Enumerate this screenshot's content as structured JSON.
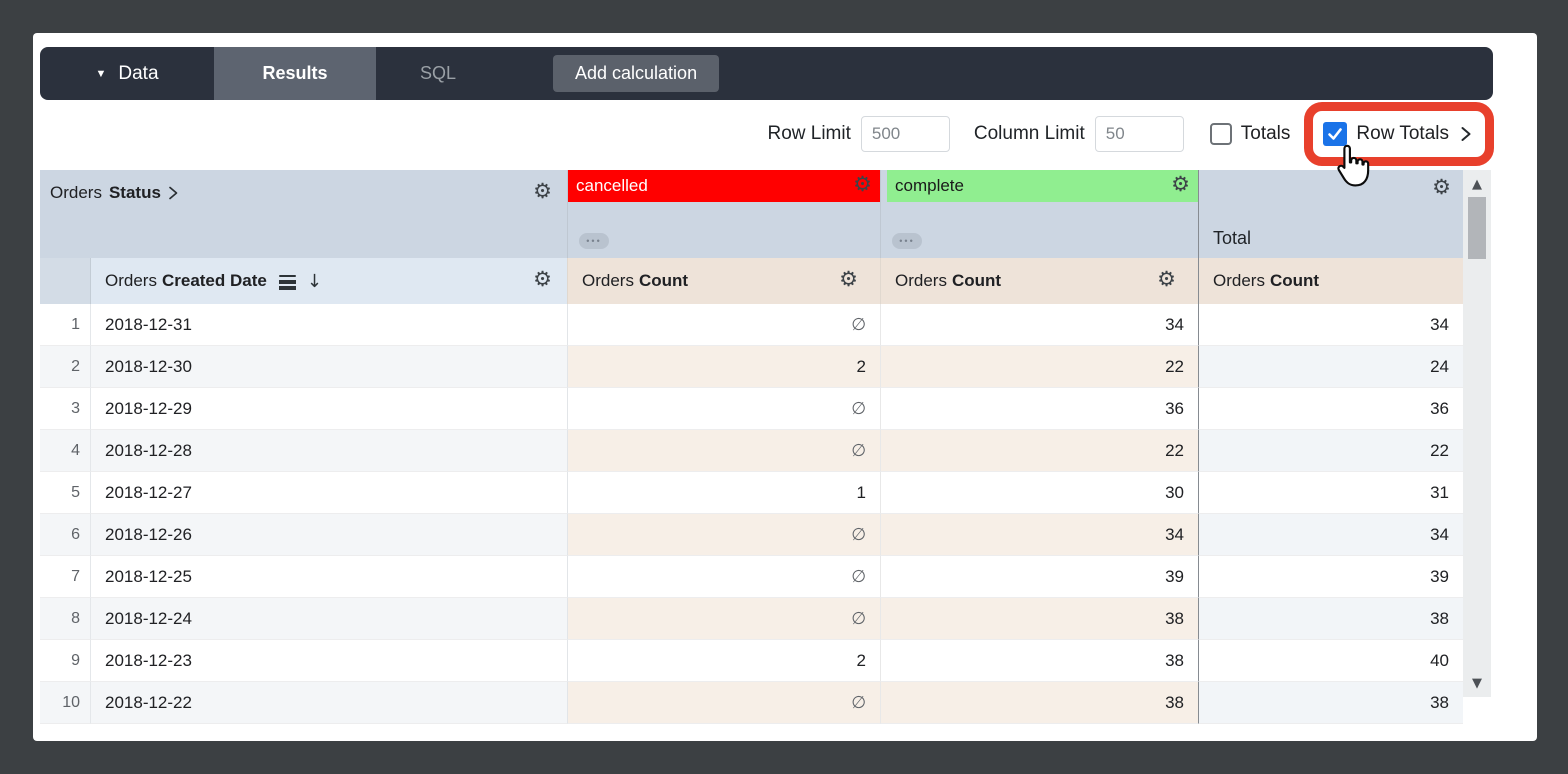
{
  "icons": {
    "caret_down": "▼",
    "gear": "⚙",
    "sort_desc": "↓",
    "null_symbol": "∅",
    "dots": "•••",
    "scroll_up": "▲",
    "scroll_down": "▼"
  },
  "colors": {
    "annotation_highlight": "#e8402c",
    "checkbox_accent": "#1a73e8"
  },
  "toolbar": {
    "data_label": "Data",
    "tabs": [
      {
        "label": "Results",
        "active": true
      },
      {
        "label": "SQL",
        "active": false
      }
    ],
    "add_calculation_label": "Add calculation"
  },
  "controls": {
    "row_limit_label": "Row Limit",
    "row_limit_value": "500",
    "column_limit_label": "Column Limit",
    "column_limit_value": "50",
    "totals_label": "Totals",
    "totals_checked": false,
    "row_totals_label": "Row Totals",
    "row_totals_checked": true
  },
  "table": {
    "dimension_header": {
      "view": "Orders",
      "field": "Status"
    },
    "date_header": {
      "view": "Orders",
      "field": "Created Date"
    },
    "measure_header": {
      "view": "Orders",
      "field": "Count"
    },
    "total_label": "Total",
    "pivots": [
      {
        "label": "cancelled",
        "bg": "#ff0000",
        "text": "#ffffff"
      },
      {
        "label": "complete",
        "bg": "#90ee90",
        "text": "#1a1a1a"
      }
    ],
    "rows": [
      {
        "n": 1,
        "date": "2018-12-31",
        "cancelled": null,
        "complete": 34,
        "total": 34
      },
      {
        "n": 2,
        "date": "2018-12-30",
        "cancelled": 2,
        "complete": 22,
        "total": 24
      },
      {
        "n": 3,
        "date": "2018-12-29",
        "cancelled": null,
        "complete": 36,
        "total": 36
      },
      {
        "n": 4,
        "date": "2018-12-28",
        "cancelled": null,
        "complete": 22,
        "total": 22
      },
      {
        "n": 5,
        "date": "2018-12-27",
        "cancelled": 1,
        "complete": 30,
        "total": 31
      },
      {
        "n": 6,
        "date": "2018-12-26",
        "cancelled": null,
        "complete": 34,
        "total": 34
      },
      {
        "n": 7,
        "date": "2018-12-25",
        "cancelled": null,
        "complete": 39,
        "total": 39
      },
      {
        "n": 8,
        "date": "2018-12-24",
        "cancelled": null,
        "complete": 38,
        "total": 38
      },
      {
        "n": 9,
        "date": "2018-12-23",
        "cancelled": 2,
        "complete": 38,
        "total": 40
      },
      {
        "n": 10,
        "date": "2018-12-22",
        "cancelled": null,
        "complete": 38,
        "total": 38
      }
    ]
  }
}
